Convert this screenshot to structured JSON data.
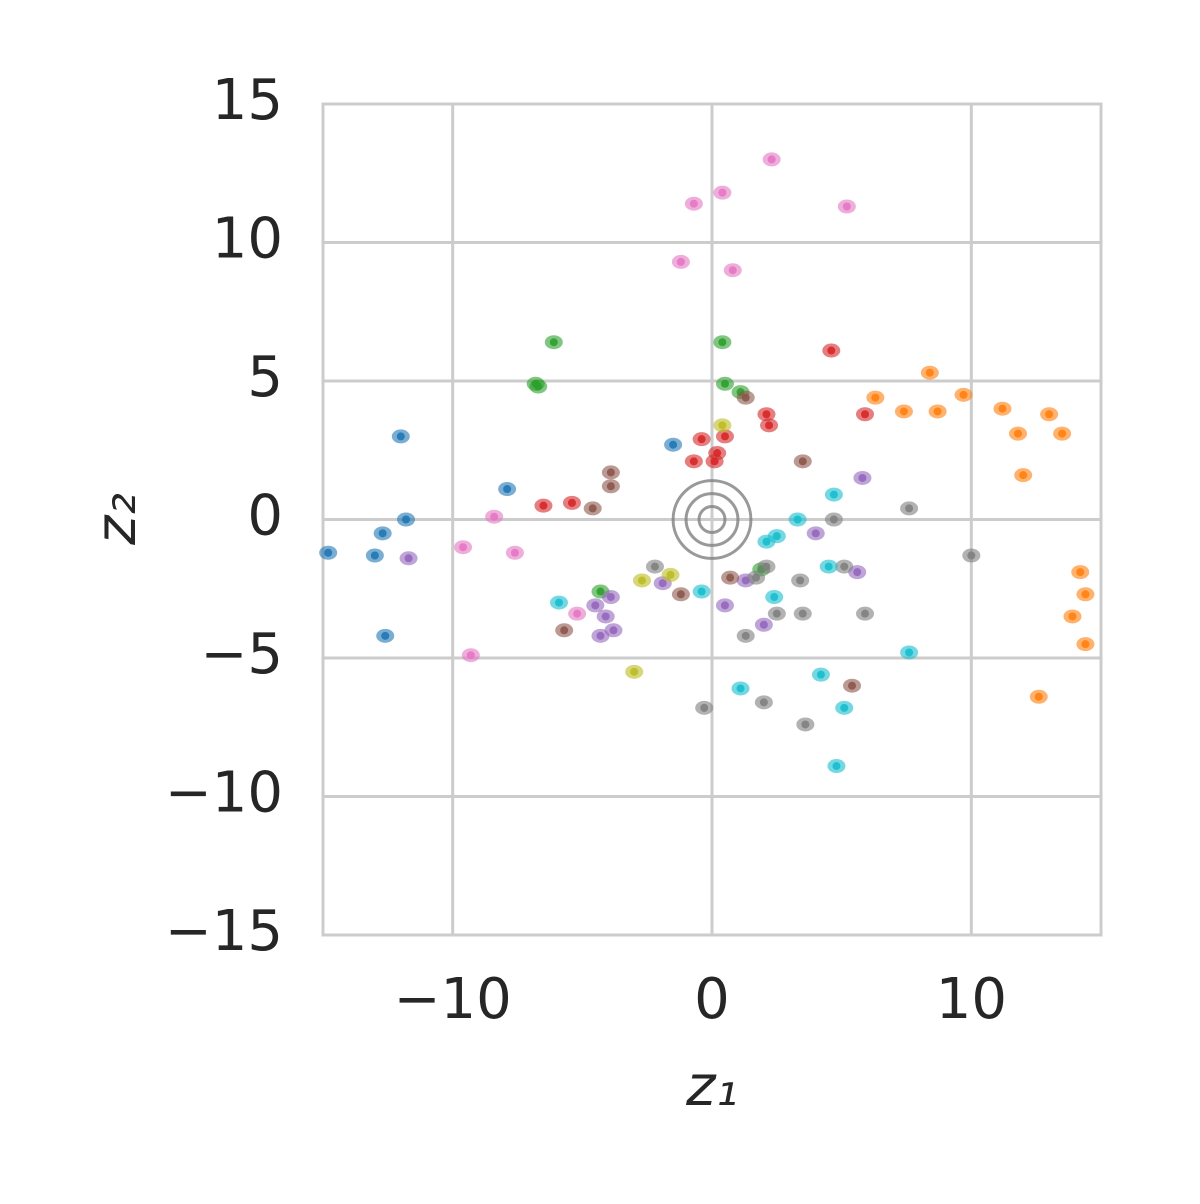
{
  "chart_data": {
    "type": "scatter",
    "xlabel": "z₁",
    "ylabel": "z₂",
    "xlim": [
      -15,
      15
    ],
    "ylim": [
      -15,
      15
    ],
    "xticks": [
      {
        "value": -10,
        "label": "−10"
      },
      0,
      10
    ],
    "yticks": [
      {
        "value": -15,
        "label": "−15"
      },
      {
        "value": -10,
        "label": "−10"
      },
      {
        "value": -5,
        "label": "−5"
      },
      0,
      5,
      10,
      15
    ],
    "grid": true,
    "contour_radii": [
      0.5,
      1,
      1.5
    ],
    "contour_color": "#7f7f7f",
    "series": [
      {
        "color": "#1f77b4",
        "x": [
          -12.0,
          -7.9,
          -12.7,
          -11.8,
          -13.0,
          -14.8,
          -12.6,
          -1.5
        ],
        "y": [
          3.0,
          1.1,
          -0.5,
          0,
          -1.3,
          -1.2,
          -4.2,
          2.7
        ]
      },
      {
        "color": "#ff7f0e",
        "x": [
          6.3,
          7.4,
          8.4,
          8.7,
          9.7,
          11.2,
          11.8,
          13.0,
          13.5,
          12.0,
          14.2,
          14.4,
          13.9,
          14.4,
          12.6
        ],
        "y": [
          4.4,
          3.9,
          5.3,
          3.9,
          4.5,
          4.0,
          3.1,
          3.8,
          3.1,
          1.6,
          -1.9,
          -2.7,
          -3.5,
          -4.5,
          -6.4
        ]
      },
      {
        "color": "#2ca02c",
        "x": [
          -6.1,
          -6.7,
          -6.8,
          0.4,
          1.1,
          0.5,
          1.9,
          -4.3
        ],
        "y": [
          6.4,
          4.8,
          4.9,
          6.4,
          4.6,
          4.9,
          -1.8,
          -2.6
        ]
      },
      {
        "color": "#d62728",
        "x": [
          4.6,
          5.9,
          2.1,
          2.2,
          -0.4,
          0.5,
          0.2,
          0.1,
          -0.7,
          -5.4,
          -6.5
        ],
        "y": [
          6.1,
          3.8,
          3.8,
          3.4,
          2.9,
          3.0,
          2.4,
          2.1,
          2.1,
          0.6,
          0.5
        ]
      },
      {
        "color": "#9467bd",
        "x": [
          5.8,
          -11.7,
          4.0,
          5.6,
          0.5,
          -3.9,
          -4.5,
          -4.1,
          -3.8,
          -4.3,
          -1.9,
          2.0,
          1.3
        ],
        "y": [
          1.5,
          -1.4,
          -0.5,
          -1.9,
          -3.1,
          -2.8,
          -3.1,
          -3.5,
          -4.0,
          -4.2,
          -2.3,
          -3.8,
          -2.2
        ]
      },
      {
        "color": "#8c564b",
        "x": [
          3.5,
          1.3,
          -3.9,
          -3.9,
          -4.6,
          -5.7,
          -1.2,
          0.7,
          5.4
        ],
        "y": [
          2.1,
          4.4,
          1.7,
          1.2,
          0.4,
          -4.0,
          -2.7,
          -2.1,
          -6.0
        ]
      },
      {
        "color": "#e377c2",
        "x": [
          2.3,
          0.4,
          -0.7,
          5.2,
          -1.2,
          0.8,
          -8.4,
          -9.6,
          -7.6,
          -5.2,
          -9.3
        ],
        "y": [
          13.0,
          11.8,
          11.4,
          11.3,
          9.3,
          9.0,
          0.1,
          -1.0,
          -1.2,
          -3.4,
          -4.9
        ]
      },
      {
        "color": "#7f7f7f",
        "x": [
          7.6,
          4.7,
          10.0,
          5.1,
          3.4,
          2.1,
          1.7,
          1.3,
          3.5,
          2.5,
          5.9,
          2.0,
          3.6,
          -0.3,
          -2.2
        ],
        "y": [
          0.4,
          0,
          -1.3,
          -1.7,
          -2.2,
          -1.7,
          -2.1,
          -4.2,
          -3.4,
          -3.4,
          -3.4,
          -6.6,
          -7.4,
          -6.8,
          -1.7
        ]
      },
      {
        "color": "#bcbd22",
        "x": [
          0.4,
          -1.6,
          -3.0,
          -2.7
        ],
        "y": [
          3.4,
          -2.0,
          -5.5,
          -2.2
        ]
      },
      {
        "color": "#17becf",
        "x": [
          4.7,
          3.3,
          2.5,
          2.1,
          4.5,
          -0.4,
          -5.9,
          2.4,
          7.6,
          4.2,
          1.1,
          5.1,
          4.8
        ],
        "y": [
          0.9,
          0,
          -0.6,
          -0.8,
          -1.7,
          -2.6,
          -3.0,
          -2.8,
          -4.8,
          -5.6,
          -6.1,
          -6.8,
          -8.9
        ]
      }
    ]
  }
}
